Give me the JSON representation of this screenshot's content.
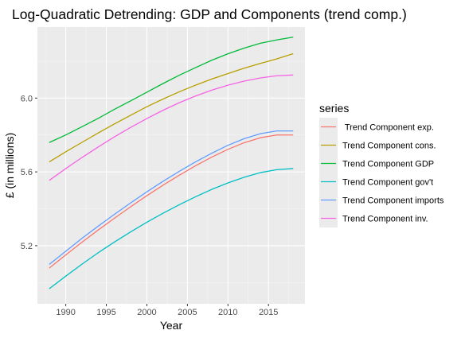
{
  "chart_data": {
    "type": "line",
    "title": "Log-Quadratic Detrending: GDP and Components (trend comp.)",
    "xlabel": "Year",
    "ylabel": "£ (in millions)",
    "xlim": [
      1986.5,
      2019.5
    ],
    "ylim": [
      4.885,
      6.385
    ],
    "x_ticks": [
      1990,
      1995,
      2000,
      2005,
      2010,
      2015
    ],
    "x_tick_labels": [
      "1990",
      "1995",
      "2000",
      "2005",
      "2010",
      "2015"
    ],
    "y_ticks": [
      5.2,
      5.6,
      6.0
    ],
    "y_tick_labels": [
      "5.2",
      "5.6",
      "6.0"
    ],
    "grid": true,
    "legend_title": "series",
    "legend_position": "right",
    "x": [
      1988,
      1990,
      1992,
      1994,
      1996,
      1998,
      2000,
      2002,
      2004,
      2006,
      2008,
      2010,
      2012,
      2014,
      2016,
      2018
    ],
    "series": [
      {
        "name": " Trend Component exp.",
        "color": "#f8766d",
        "values": [
          5.08,
          5.15,
          5.219,
          5.285,
          5.349,
          5.411,
          5.471,
          5.528,
          5.582,
          5.633,
          5.68,
          5.722,
          5.758,
          5.785,
          5.8,
          5.8
        ]
      },
      {
        "name": "Trend Component cons.",
        "color": "#b79f00",
        "values": [
          5.655,
          5.709,
          5.76,
          5.811,
          5.86,
          5.907,
          5.953,
          5.995,
          6.034,
          6.07,
          6.103,
          6.133,
          6.162,
          6.188,
          6.212,
          6.24
        ]
      },
      {
        "name": "Trend Component GDP",
        "color": "#00ba38",
        "values": [
          5.76,
          5.8,
          5.845,
          5.89,
          5.939,
          5.985,
          6.032,
          6.079,
          6.124,
          6.165,
          6.205,
          6.24,
          6.271,
          6.297,
          6.315,
          6.33
        ]
      },
      {
        "name": "Trend Component gov't",
        "color": "#00bfc4",
        "values": [
          4.968,
          5.035,
          5.1,
          5.162,
          5.22,
          5.275,
          5.327,
          5.376,
          5.422,
          5.465,
          5.505,
          5.54,
          5.571,
          5.596,
          5.612,
          5.618
        ]
      },
      {
        "name": "Trend Component imports",
        "color": "#619cff",
        "values": [
          5.1,
          5.17,
          5.24,
          5.306,
          5.37,
          5.432,
          5.492,
          5.549,
          5.603,
          5.654,
          5.701,
          5.744,
          5.78,
          5.807,
          5.822,
          5.822
        ]
      },
      {
        "name": "Trend Component inv.",
        "color": "#f564e3",
        "values": [
          5.555,
          5.618,
          5.678,
          5.735,
          5.79,
          5.841,
          5.889,
          5.934,
          5.975,
          6.011,
          6.043,
          6.07,
          6.092,
          6.109,
          6.121,
          6.125
        ]
      }
    ]
  }
}
